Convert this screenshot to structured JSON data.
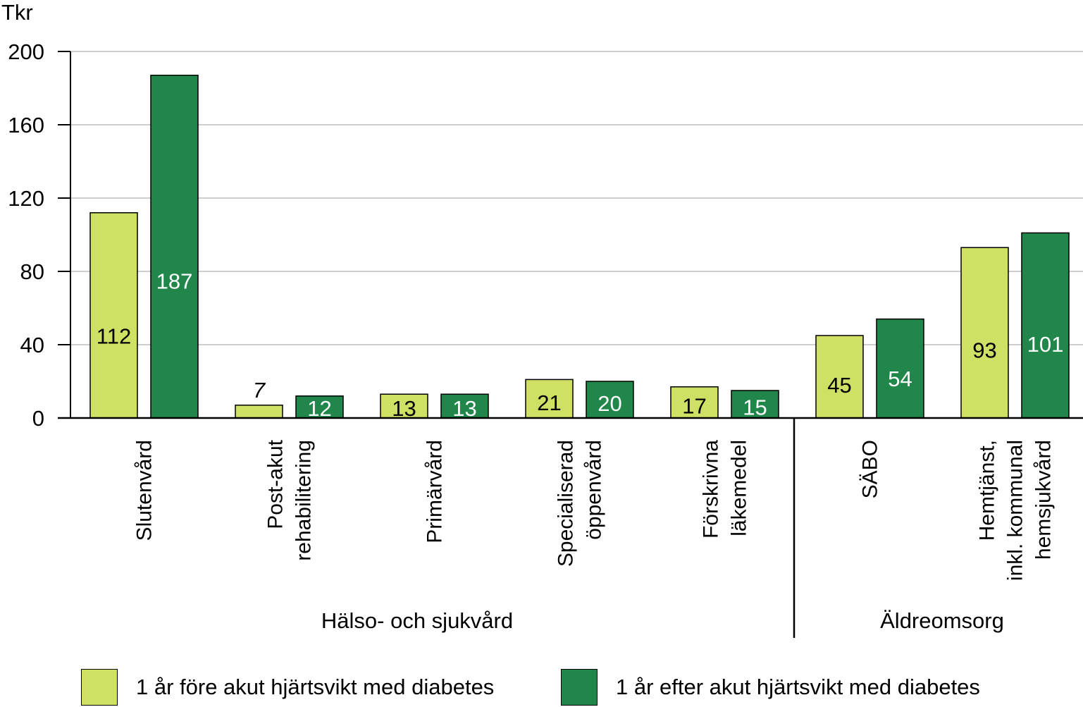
{
  "chart_data": {
    "type": "bar",
    "unit_label": "Tkr",
    "ylim": [
      0,
      200
    ],
    "yticks": [
      0,
      40,
      80,
      120,
      160,
      200
    ],
    "grid": true,
    "categories": [
      {
        "lines": [
          "Slutenvård"
        ],
        "group": "Hälso- och sjukvård"
      },
      {
        "lines": [
          "Post-akut",
          "rehabilitering"
        ],
        "group": "Hälso- och sjukvård"
      },
      {
        "lines": [
          "Primärvård"
        ],
        "group": "Hälso- och sjukvård"
      },
      {
        "lines": [
          "Specialiserad",
          "öppenvård"
        ],
        "group": "Hälso- och sjukvård"
      },
      {
        "lines": [
          "Förskrivna",
          "läkemedel"
        ],
        "group": "Hälso- och sjukvård"
      },
      {
        "lines": [
          "SÄBO"
        ],
        "group": "Äldreomsorg"
      },
      {
        "lines": [
          "Hemtjänst,",
          "inkl. kommunal",
          "hemsjukvård"
        ],
        "group": "Äldreomsorg"
      }
    ],
    "groups": [
      "Hälso- och sjukvård",
      "Äldreomsorg"
    ],
    "series": [
      {
        "name": "1 år före akut hjärtsvikt med diabetes",
        "color": "#cfe065",
        "label_color": "#000000",
        "values": [
          112,
          7,
          13,
          21,
          17,
          45,
          93
        ],
        "labels": [
          "112",
          "7",
          "13",
          "21",
          "17",
          "45",
          "93"
        ]
      },
      {
        "name": "1 år efter akut hjärtsvikt med diabetes",
        "color": "#21864a",
        "label_color": "#ffffff",
        "values": [
          187,
          12,
          13,
          20,
          15,
          54,
          101
        ],
        "labels": [
          "187",
          "12",
          "13",
          "20",
          "15",
          "54",
          "101"
        ]
      }
    ],
    "legend_position": "bottom"
  }
}
